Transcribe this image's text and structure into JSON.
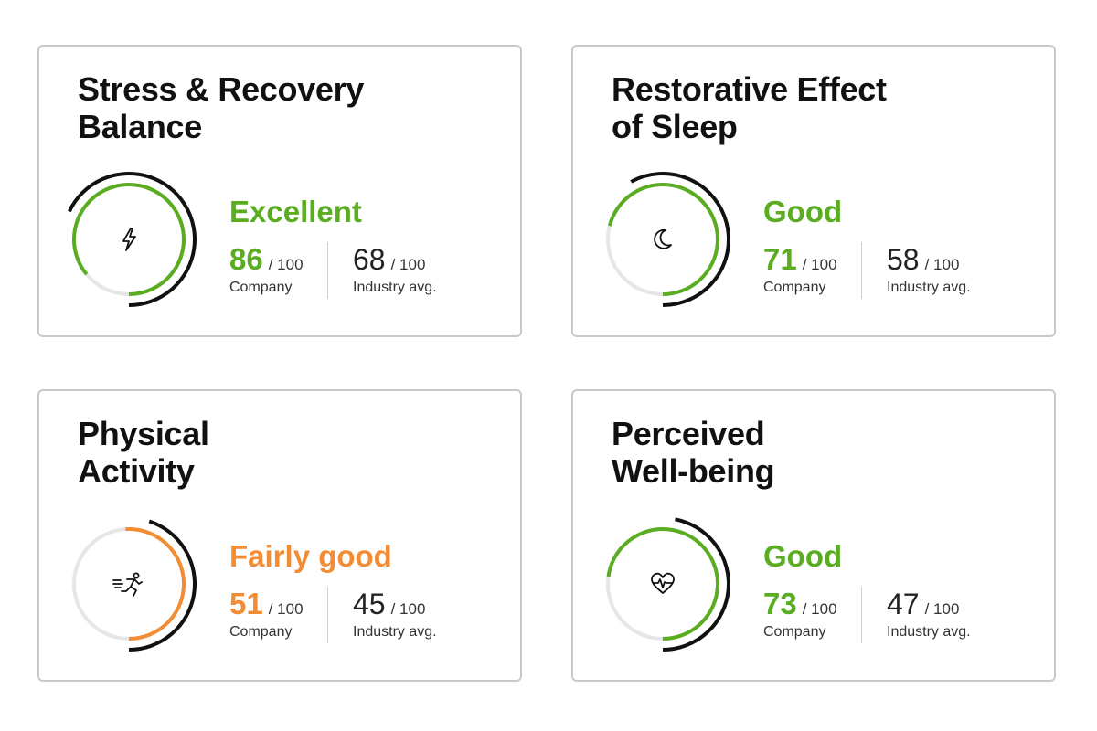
{
  "colors": {
    "green": "#5aac20",
    "orange": "#f28c35",
    "track": "#e6e6e6",
    "outer": "#111111"
  },
  "labels": {
    "scale": "/ 100",
    "company": "Company",
    "industry": "Industry avg."
  },
  "cards": [
    {
      "title": "Stress & Recovery\nBalance",
      "rating": "Excellent",
      "color": "#5aac20",
      "company_score": "86",
      "industry_score": "68",
      "company_value": 86,
      "industry_value": 68,
      "icon": "lightning-bolt-icon"
    },
    {
      "title": "Restorative Effect\nof Sleep",
      "rating": "Good",
      "color": "#5aac20",
      "company_score": "71",
      "industry_score": "58",
      "company_value": 71,
      "industry_value": 58,
      "icon": "moon-icon"
    },
    {
      "title": "Physical\nActivity",
      "rating": "Fairly good",
      "color": "#f28c35",
      "company_score": "51",
      "industry_score": "45",
      "company_value": 51,
      "industry_value": 45,
      "icon": "running-person-icon"
    },
    {
      "title": "Perceived\nWell-being",
      "rating": "Good",
      "color": "#5aac20",
      "company_score": "73",
      "industry_score": "47",
      "company_value": 73,
      "industry_value": 47,
      "icon": "heart-pulse-icon"
    }
  ]
}
